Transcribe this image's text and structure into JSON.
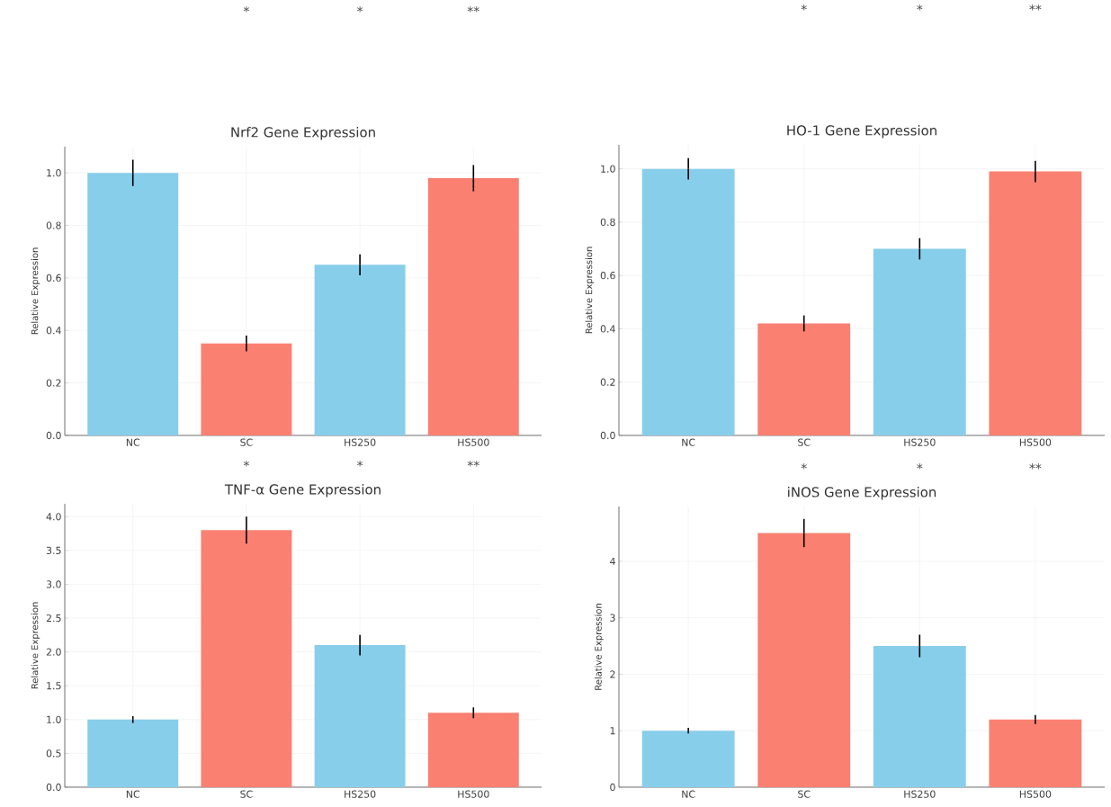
{
  "chart_data": [
    {
      "type": "bar",
      "title": "Nrf2 Gene Expression",
      "ylabel": "Relative Expression",
      "categories": [
        "NC",
        "SC",
        "HS250",
        "HS500"
      ],
      "values": [
        1.0,
        0.35,
        0.65,
        0.98
      ],
      "errors": [
        0.05,
        0.03,
        0.04,
        0.05
      ],
      "colors": [
        "#87ceeb",
        "#fa8072",
        "#87ceeb",
        "#fa8072"
      ],
      "ylim": [
        0,
        1.1
      ],
      "yticks": [
        {
          "value": 0,
          "label": "0.0"
        },
        0.2,
        0.4,
        0.6,
        0.8,
        {
          "value": 1,
          "label": "1.0"
        }
      ],
      "grid": true,
      "annotations": [
        "*",
        "*",
        "**"
      ]
    },
    {
      "type": "bar",
      "title": "HO-1 Gene Expression",
      "ylabel": "Relative Expression",
      "categories": [
        "NC",
        "SC",
        "HS250",
        "HS500"
      ],
      "values": [
        1.0,
        0.42,
        0.7,
        0.99
      ],
      "errors": [
        0.04,
        0.03,
        0.04,
        0.04
      ],
      "colors": [
        "#87ceeb",
        "#fa8072",
        "#87ceeb",
        "#fa8072"
      ],
      "ylim": [
        0,
        1.09
      ],
      "yticks": [
        {
          "value": 0,
          "label": "0.0"
        },
        0.2,
        0.4,
        0.6,
        0.8,
        {
          "value": 1,
          "label": "1.0"
        }
      ],
      "grid": true,
      "annotations": [
        "*",
        "*",
        "**"
      ]
    },
    {
      "type": "bar",
      "title": "TNF-α Gene Expression",
      "ylabel": "Relative Expression",
      "categories": [
        "NC",
        "SC",
        "HS250",
        "HS500"
      ],
      "values": [
        1.0,
        3.8,
        2.1,
        1.1
      ],
      "errors": [
        0.05,
        0.2,
        0.15,
        0.08
      ],
      "colors": [
        "#87ceeb",
        "#fa8072",
        "#87ceeb",
        "#fa8072"
      ],
      "ylim": [
        0,
        4.19
      ],
      "yticks": [
        {
          "value": 0,
          "label": "0.0"
        },
        0.5,
        {
          "value": 1,
          "label": "1.0"
        },
        1.5,
        {
          "value": 2,
          "label": "2.0"
        },
        2.5,
        {
          "value": 3,
          "label": "3.0"
        },
        3.5,
        {
          "value": 4,
          "label": "4.0"
        }
      ],
      "grid": true,
      "annotations": [
        "*",
        "*",
        "**"
      ]
    },
    {
      "type": "bar",
      "title": "iNOS Gene Expression",
      "ylabel": "Relative Expression",
      "categories": [
        "NC",
        "SC",
        "HS250",
        "HS500"
      ],
      "values": [
        1.0,
        4.5,
        2.5,
        1.2
      ],
      "errors": [
        0.05,
        0.25,
        0.2,
        0.08
      ],
      "colors": [
        "#87ceeb",
        "#fa8072",
        "#87ceeb",
        "#fa8072"
      ],
      "ylim": [
        0,
        4.97
      ],
      "yticks": [
        0,
        1,
        2,
        3,
        4
      ],
      "grid": true,
      "annotations": [
        "*",
        "*",
        "**"
      ]
    }
  ]
}
